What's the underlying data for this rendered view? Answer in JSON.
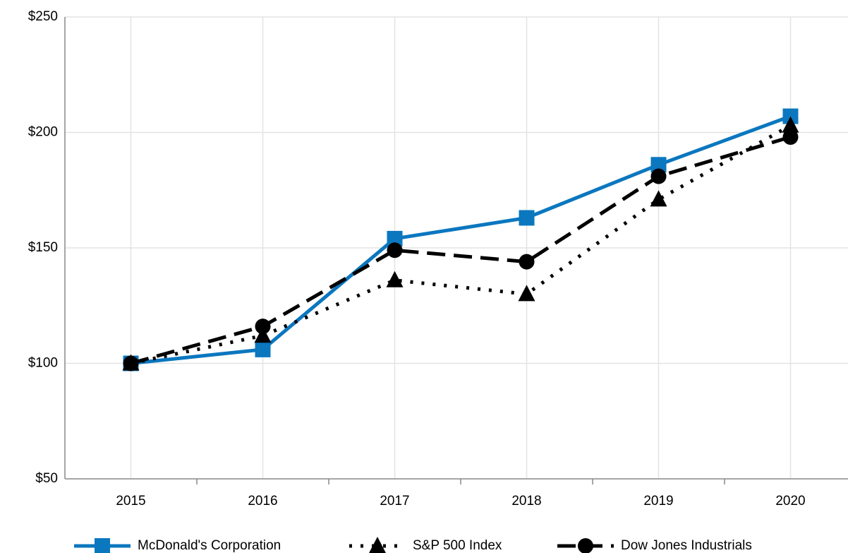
{
  "chart_data": {
    "type": "line",
    "categories": [
      "2015",
      "2016",
      "2017",
      "2018",
      "2019",
      "2020"
    ],
    "series": [
      {
        "name": "McDonald's Corporation",
        "color": "#0b77bf",
        "dash": "solid",
        "marker": "square",
        "values": [
          100,
          106,
          154,
          163,
          186,
          207
        ]
      },
      {
        "name": "S&P 500 Index",
        "color": "#000000",
        "dash": "dotted",
        "marker": "triangle",
        "values": [
          100,
          112,
          136,
          130,
          171,
          203
        ]
      },
      {
        "name": "Dow Jones Industrials",
        "color": "#000000",
        "dash": "dashed",
        "marker": "circle",
        "values": [
          100,
          116,
          149,
          144,
          181,
          198
        ]
      }
    ],
    "ylim": [
      50,
      250
    ],
    "yticks": [
      {
        "value": 50,
        "label": "$50"
      },
      {
        "value": 100,
        "label": "$100"
      },
      {
        "value": 150,
        "label": "$150"
      },
      {
        "value": 200,
        "label": "$200"
      },
      {
        "value": 250,
        "label": "$250"
      }
    ],
    "grid": true,
    "legend": "bottom"
  }
}
